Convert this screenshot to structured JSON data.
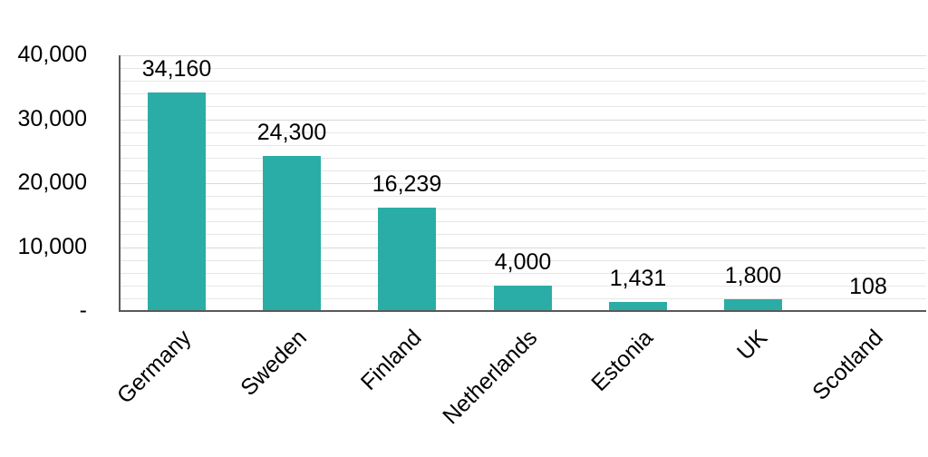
{
  "chart_data": {
    "type": "bar",
    "title": "",
    "xlabel": "",
    "ylabel": "",
    "categories": [
      "Germany",
      "Sweden",
      "Finland",
      "Netherlands",
      "Estonia",
      "UK",
      "Scotland"
    ],
    "values": [
      34160,
      24300,
      16239,
      4000,
      1431,
      1800,
      108
    ],
    "data_labels": [
      "34,160",
      "24,300",
      "16,239",
      "4,000",
      "1,431",
      "1,800",
      "108"
    ],
    "ylim": [
      0,
      40000
    ],
    "yticks": [
      0,
      10000,
      20000,
      30000,
      40000
    ],
    "ytick_labels": [
      "-",
      "10,000",
      "20,000",
      "30,000",
      "40,000"
    ],
    "minor_grid_step": 2000,
    "grid": true,
    "legend": null,
    "bar_color": "#2BADA7",
    "x_label_rotation": -45
  }
}
